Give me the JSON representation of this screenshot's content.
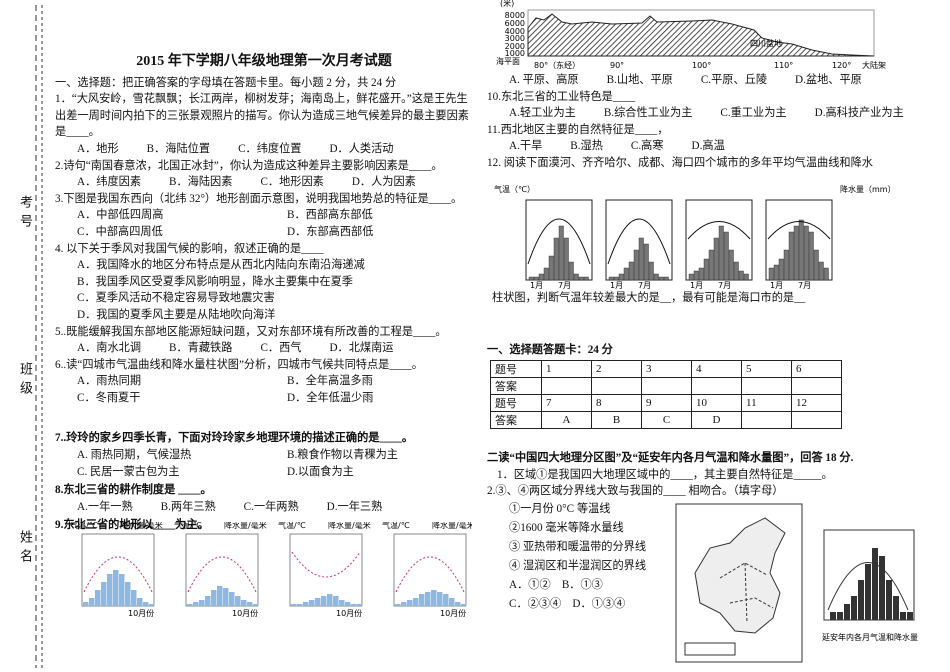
{
  "binding": {
    "labels": [
      "考号",
      "班级",
      "姓名"
    ]
  },
  "header": {
    "title": "2015 年下学期八年级地理第一次月考试题"
  },
  "left": {
    "section": "一、选择题：把正确答案的字母填在答题卡里。每小题 2 分，共 24 分",
    "questions": [
      {
        "stem": "1．“大风安岭，雪花飘飘；长江两岸，柳树发芽；海南岛上，鲜花盛开。”这是王先生出差一周时间内拍下的三张景观照片的描写。你认为造成三地气候差异的最主要因素是____。",
        "options": [
          "A．地形",
          "B．海陆位置",
          "C．纬度位置",
          "D．人类活动"
        ]
      },
      {
        "stem": "2.诗句“南国春意浓，北国正冰封”，你认为造成这种差异主要影响因素是____。",
        "options": [
          "A．纬度因素",
          "B．海陆因素",
          "C．地形因素",
          "D．人为因素"
        ]
      },
      {
        "stem": "3.下图是我国东西向（北纬 32°）地形剖面示意图，说明我国地势总的特征是____。",
        "options": [
          "A．中部低四周高",
          "B．西部高东部低",
          "C．中部高四周低",
          "D．东部高西部低"
        ]
      },
      {
        "stem": "4. 以下关于季风对我国气候的影响，叙述正确的是____",
        "options": [
          "A．我国降水的地区分布特点是从西北内陆向东南沿海递减",
          "B．我国季风区受夏季风影响明显，降水主要集中在夏季",
          "C．夏季风活动不稳定容易导致地震灾害",
          "D．我国的夏季风主要是从陆地吹向海洋"
        ]
      },
      {
        "stem": "5..既能缓解我国东部地区能源短缺问题，又对东部环境有所改善的工程是____。",
        "options": [
          "A．南水北调",
          "B．青藏铁路",
          "C．西气",
          "D．北煤南运"
        ]
      },
      {
        "stem": "6..读“四城市气温曲线和降水量柱状图”分析，四城市气候共同特点是____。",
        "options": [
          "A．雨热同期",
          "B．全年高温多雨",
          "C．冬雨夏干",
          "D．全年低温少雨"
        ]
      },
      {
        "stem": "7..玲玲的家乡四季长青，下面对玲玲家乡地理环境的描述正确的是____。",
        "options": [
          "A. 雨热同期，气候湿热",
          "B.粮食作物以青稞为主",
          "C. 民居一蒙古包为主",
          "D.以面食为主"
        ]
      },
      {
        "stem": "8.东北三省的耕作制度是 ____。",
        "options": [
          "A.一年一熟",
          "B.两年三熟",
          "C.一年两熟",
          "D.一年三熟"
        ]
      },
      {
        "stem": "9.东北三省的地形以____为主。",
        "options": []
      }
    ],
    "climate_charts": {
      "temp_axis": "气温/℃",
      "precip_axis": "降水量/毫米",
      "month_axis": "10月份"
    }
  },
  "profile": {
    "unit": "(米)",
    "heights": [
      "8000",
      "6000",
      "4000",
      "3000",
      "2000",
      "1000"
    ],
    "sea_level": "海平面",
    "longitudes": [
      "80°（东经）",
      "90°",
      "100°",
      "110°",
      "120°"
    ],
    "basin": "四川盆地",
    "shelf": "大陆架"
  },
  "right": {
    "questions": [
      {
        "stem": "",
        "options": [
          "A. 平原、高原",
          "B.山地、平原",
          "C.平原、丘陵",
          "D.盆地、平原"
        ]
      },
      {
        "stem": "10.东北三省的工业特色是____",
        "options": [
          "A.轻工业为主",
          "B.综合性工业为主",
          "C.重工业为主",
          "D.高科技产业为主"
        ]
      },
      {
        "stem": "11.西北地区主要的自然特征是____，",
        "options": [
          "A.干旱",
          "B.湿热",
          "C.高寒",
          "D.高温"
        ]
      },
      {
        "stem": "12. 阅读下面漠河、齐齐哈尔、成都、海口四个城市的多年平均气温曲线和降水",
        "options": []
      }
    ],
    "city_charts": {
      "temp_axis": "气温（℃）",
      "precip_axis": "降水量（mm）",
      "months": [
        "1月",
        "7月"
      ]
    },
    "q12_end": "柱状图，判断气温年较差最大的是__，最有可能是海口市的是__",
    "card_title": "一、选择题答题卡：24 分",
    "table": {
      "rows": [
        [
          "题号",
          "1",
          "2",
          "3",
          "4",
          "5",
          "6"
        ],
        [
          "答案"
        ],
        [
          "题号",
          "7",
          "8",
          "9",
          "10",
          "11",
          "12"
        ],
        [
          "答案",
          "A",
          "B",
          "C",
          "D"
        ]
      ]
    },
    "part2": {
      "title": "二读“中国四大地理分区图”及“延安年内各月气温和降水量图”，回答 18 分.",
      "q1": "1．区域①是我国四大地理区域中的____，其主要自然特征是_____。",
      "q2": "2.③、④两区域分界线大致与我国的____ 相吻合。（填字母）",
      "choices": [
        "①一月份 0°C 等温线",
        "②1600 毫米等降水量线",
        "③ 亚热带和暖温带的分界线",
        "④ 湿润区和半湿润区的界线",
        "A．①②　B．①③",
        "C．②③④　D．①③④"
      ],
      "yanan_caption": "延安年内各月气温和降水量"
    }
  }
}
